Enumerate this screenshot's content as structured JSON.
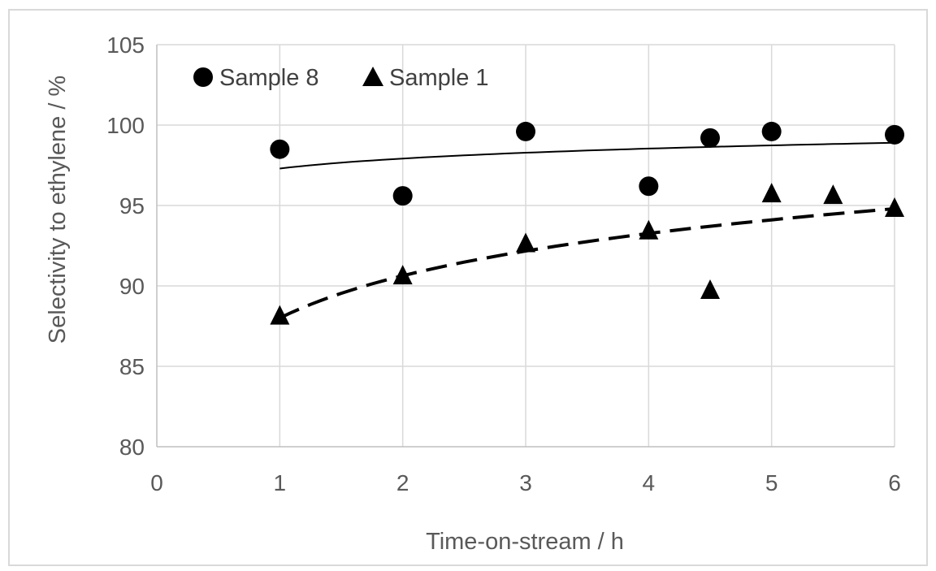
{
  "chart_data": {
    "type": "scatter",
    "title": "",
    "xlabel": "Time-on-stream / h",
    "ylabel": "Selectivity to ethylene / %",
    "xlim": [
      0,
      6
    ],
    "ylim": [
      80,
      105
    ],
    "xticks": [
      0,
      1,
      2,
      3,
      4,
      5,
      6
    ],
    "yticks": [
      80,
      85,
      90,
      95,
      100,
      105
    ],
    "grid": true,
    "legend_position": "top-left",
    "series": [
      {
        "name": "Sample 8",
        "marker": "circle",
        "x": [
          1,
          2,
          3,
          4,
          4.5,
          5,
          6
        ],
        "y": [
          98.5,
          95.6,
          99.6,
          96.2,
          99.2,
          99.6,
          99.4
        ],
        "trendline": {
          "style": "solid",
          "x": [
            1,
            6
          ],
          "y": [
            97.3,
            98.9
          ]
        }
      },
      {
        "name": "Sample 1",
        "marker": "triangle",
        "x": [
          1,
          2,
          3,
          4,
          4.5,
          5,
          5.5,
          6
        ],
        "y": [
          88.2,
          90.7,
          92.7,
          93.5,
          89.8,
          95.8,
          95.7,
          94.9
        ],
        "trendline": {
          "style": "dashed",
          "x": [
            1,
            6
          ],
          "y": [
            88.0,
            94.8
          ]
        }
      }
    ]
  },
  "colors": {
    "marker": "#000000",
    "grid": "#d9d9d9",
    "axis": "#bfbfbf",
    "text": "#595959",
    "frame": "#d9d9d9"
  }
}
